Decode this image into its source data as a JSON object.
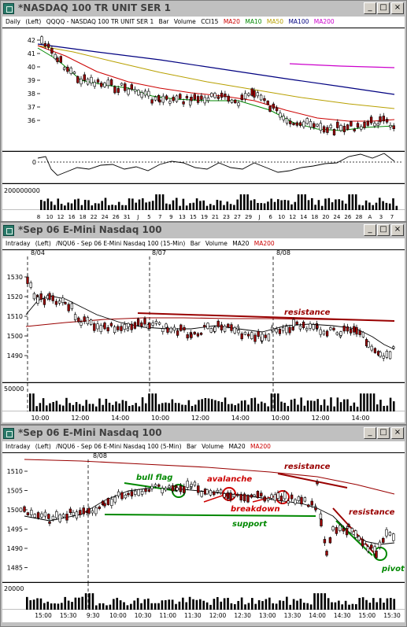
{
  "window1": {
    "title": "*NASDAQ 100 TR UNIT SER 1",
    "info": [
      "Daily",
      "(Left)",
      "QQQQ - NASDAQ 100 TR UNIT SER 1",
      "Bar",
      "Volume",
      "CCI15"
    ],
    "legend": [
      {
        "label": "MA20",
        "color": "#cc0000"
      },
      {
        "label": "MA10",
        "color": "#008800"
      },
      {
        "label": "MA50",
        "color": "#b8a000"
      },
      {
        "label": "MA100",
        "color": "#000080"
      },
      {
        "label": "MA200",
        "color": "#cc00cc"
      }
    ],
    "price_ticks": [
      "42",
      "41",
      "40",
      "39",
      "38",
      "37",
      "36"
    ],
    "cci_tick": "0",
    "volume_tick": "200000000",
    "x_ticks": [
      "8",
      "10",
      "12",
      "16",
      "18",
      "22",
      "24",
      "26",
      "31",
      "J",
      "5",
      "7",
      "9",
      "13",
      "15",
      "19",
      "21",
      "23",
      "27",
      "29",
      "J",
      "6",
      "10",
      "12",
      "14",
      "18",
      "20",
      "24",
      "26",
      "28",
      "A",
      "3",
      "7"
    ]
  },
  "window2": {
    "title": "*Sep 06  E-Mini Nasdaq 100",
    "info": [
      "Intraday",
      "(Left)",
      "/NQU6 - Sep 06 E-Mini Nasdaq 100 (15-Min)",
      "Bar",
      "Volume"
    ],
    "legend": [
      {
        "label": "MA20",
        "color": "#000000"
      },
      {
        "label": "MA200",
        "color": "#cc0000"
      }
    ],
    "dates": [
      "8/04",
      "8/07",
      "8/08"
    ],
    "price_ticks": [
      "1530",
      "1520",
      "1510",
      "1500",
      "1490"
    ],
    "volume_tick": "50000",
    "x_ticks": [
      "10:00",
      "12:00",
      "14:00",
      "10:00",
      "12:00",
      "14:00",
      "10:00",
      "12:00",
      "14:00"
    ],
    "annotation": "resistance"
  },
  "window3": {
    "title": "*Sep 06  E-Mini Nasdaq 100",
    "info": [
      "Intraday",
      "(Left)",
      "/NQU6 - Sep 06 E-Mini Nasdaq 100 (5-Min)",
      "Bar",
      "Volume"
    ],
    "legend": [
      {
        "label": "MA20",
        "color": "#000000"
      },
      {
        "label": "MA200",
        "color": "#cc0000"
      }
    ],
    "dates": [
      "8/08"
    ],
    "price_ticks": [
      "1510",
      "1505",
      "1500",
      "1495",
      "1490",
      "1485"
    ],
    "volume_tick": "20000",
    "x_ticks": [
      "15:00",
      "15:30",
      "9:30",
      "10:00",
      "10:30",
      "11:00",
      "11:30",
      "12:00",
      "12:30",
      "13:00",
      "13:30",
      "14:00",
      "14:30",
      "15:00",
      "15:30"
    ],
    "annotations": {
      "bull_flag": "bull flag",
      "avalanche": "avalanche",
      "breakdown": "breakdown",
      "support": "support",
      "resistance1": "resistance",
      "resistance2": "resistance",
      "pivot": "pivot"
    }
  },
  "buttons": {
    "minimize": "_",
    "maximize": "□",
    "close": "×"
  }
}
